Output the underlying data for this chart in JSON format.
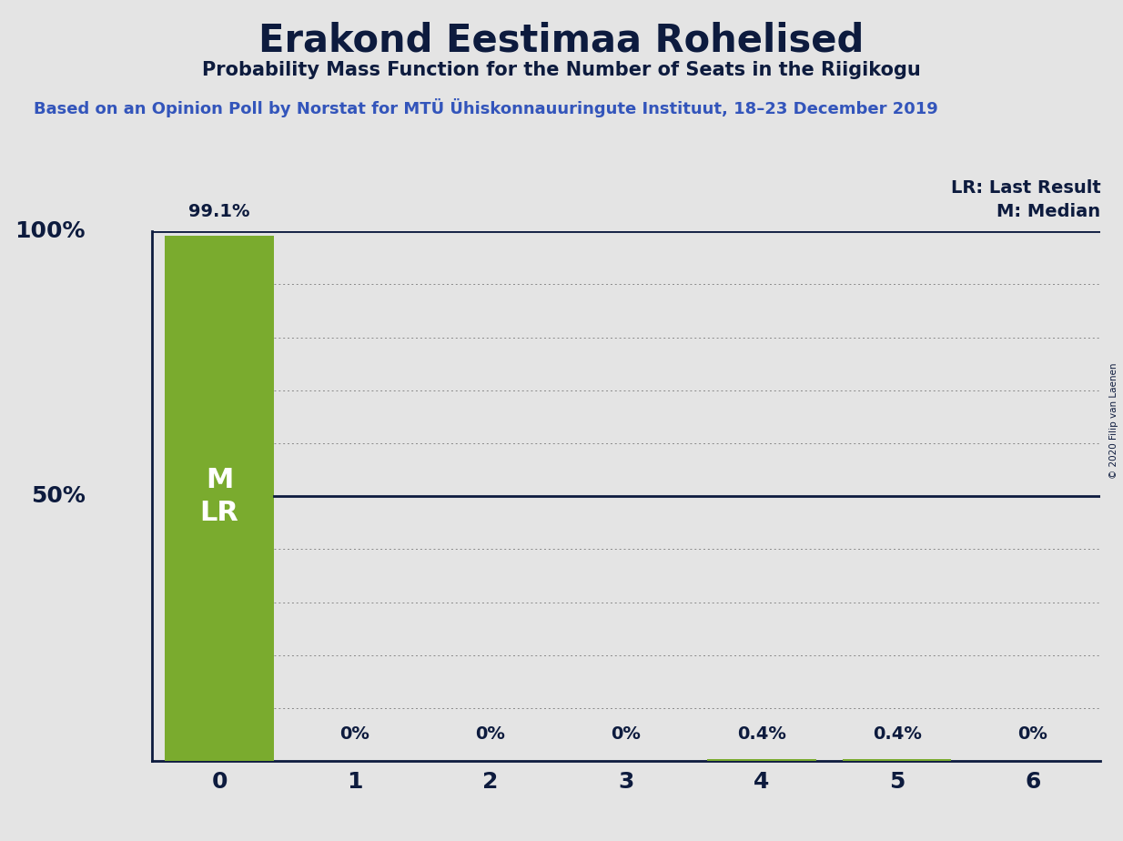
{
  "title": "Erakond Eestimaa Rohelised",
  "subtitle": "Probability Mass Function for the Number of Seats in the Riigikogu",
  "source_line": "Based on an Opinion Poll by Norstat for MTÜ Ühiskonnauuringute Instituut, 18–23 December 2019",
  "copyright": "© 2020 Filip van Laenen",
  "seats": [
    0,
    1,
    2,
    3,
    4,
    5,
    6
  ],
  "probabilities": [
    99.1,
    0.0,
    0.0,
    0.0,
    0.4,
    0.4,
    0.0
  ],
  "prob_labels": [
    "99.1%",
    "0%",
    "0%",
    "0%",
    "0.4%",
    "0.4%",
    "0%"
  ],
  "bar_color": "#7aab2e",
  "background_color": "#e4e4e4",
  "text_color": "#0d1b3e",
  "source_color": "#3355bb",
  "lr_value": 50.0,
  "lr_line_color": "#0d1b3e",
  "legend_lr": "LR: Last Result",
  "legend_m": "M: Median",
  "ylabel_ticks": [
    "100%",
    "50%"
  ],
  "ylabel_values": [
    100,
    50
  ],
  "ylim": [
    0,
    100
  ],
  "xlim": [
    -0.5,
    6.5
  ],
  "bar_width": 0.8,
  "copyright_text": "© 2020 Filip van Laenen"
}
